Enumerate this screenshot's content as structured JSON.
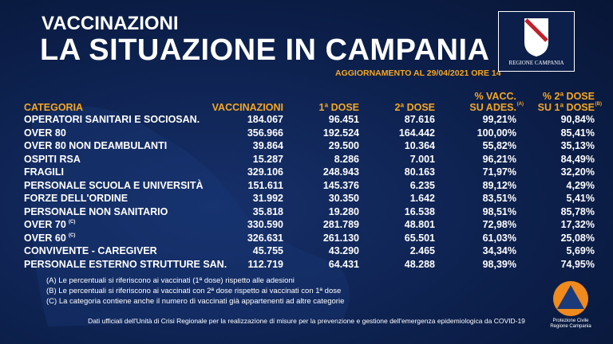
{
  "header": {
    "kicker": "VACCINAZIONI",
    "title": "LA SITUAZIONE IN CAMPANIA",
    "update": "AGGIORNAMENTO AL 29/04/2021 ORE 14",
    "logo": "REGIONE CAMPANIA"
  },
  "table": {
    "columns": [
      {
        "text": "CATEGORIA"
      },
      {
        "text": "VACCINAZIONI"
      },
      {
        "text": "1ª DOSE"
      },
      {
        "text": "2ª DOSE"
      },
      {
        "lines": [
          "% VACC.",
          "SU ADES."
        ],
        "note": "(A)"
      },
      {
        "lines": [
          "% 2ª DOSE",
          "SU 1ª DOSE"
        ],
        "note": "(B)"
      }
    ],
    "rows": [
      {
        "category": "OPERATORI SANITARI E SOCIOSAN.",
        "values": [
          "184.067",
          "96.451",
          "87.616",
          "99,21%",
          "90,84%"
        ]
      },
      {
        "category": "OVER 80",
        "values": [
          "356.966",
          "192.524",
          "164.442",
          "100,00%",
          "85,41%"
        ]
      },
      {
        "category": "OVER 80 NON DEAMBULANTI",
        "values": [
          "39.864",
          "29.500",
          "10.364",
          "55,82%",
          "35,13%"
        ]
      },
      {
        "category": "OSPITI RSA",
        "values": [
          "15.287",
          "8.286",
          "7.001",
          "96,21%",
          "84,49%"
        ]
      },
      {
        "category": "FRAGILI",
        "values": [
          "329.106",
          "248.943",
          "80.163",
          "71,97%",
          "32,20%"
        ]
      },
      {
        "category": "PERSONALE SCUOLA E UNIVERSITÀ",
        "values": [
          "151.611",
          "145.376",
          "6.235",
          "89,12%",
          "4,29%"
        ]
      },
      {
        "category": "FORZE DELL'ORDINE",
        "values": [
          "31.992",
          "30.350",
          "1.642",
          "83,51%",
          "5,41%"
        ]
      },
      {
        "category": "PERSONALE NON SANITARIO",
        "values": [
          "35.818",
          "19.280",
          "16.538",
          "98,51%",
          "85,78%"
        ]
      },
      {
        "category": "OVER 70",
        "note": "(C)",
        "values": [
          "330.590",
          "281.789",
          "48.801",
          "72,98%",
          "17,32%"
        ]
      },
      {
        "category": "OVER 60",
        "note": "(C)",
        "values": [
          "326.631",
          "261.130",
          "65.501",
          "61,03%",
          "25,08%"
        ]
      },
      {
        "category": "CONVIVENTE - CAREGIVER",
        "values": [
          "45.755",
          "43.290",
          "2.465",
          "34,34%",
          "5,69%"
        ]
      },
      {
        "category": "PERSONALE ESTERNO STRUTTURE SAN.",
        "values": [
          "112.719",
          "64.431",
          "48.288",
          "98,39%",
          "74,95%"
        ]
      }
    ]
  },
  "footnotes": [
    "(A) Le percentuali si riferiscono ai vaccinati (1ª dose) rispetto alle adesioni",
    "(B) Le percentuali si riferiscono ai vaccinati con 2ª dose rispetto ai vaccinati con 1ª dose",
    "(C) La categoria contiene anche il numero di vaccinati già appartenenti ad altre categorie"
  ],
  "footer": "Dati ufficiali dell'Unità di Crisi Regionale per la realizzazione di misure per la prevenzione e gestione dell'emergenza epidemiologica da COVID-19",
  "civil_protection": [
    "Protezione Civile",
    "Regione Campania"
  ]
}
